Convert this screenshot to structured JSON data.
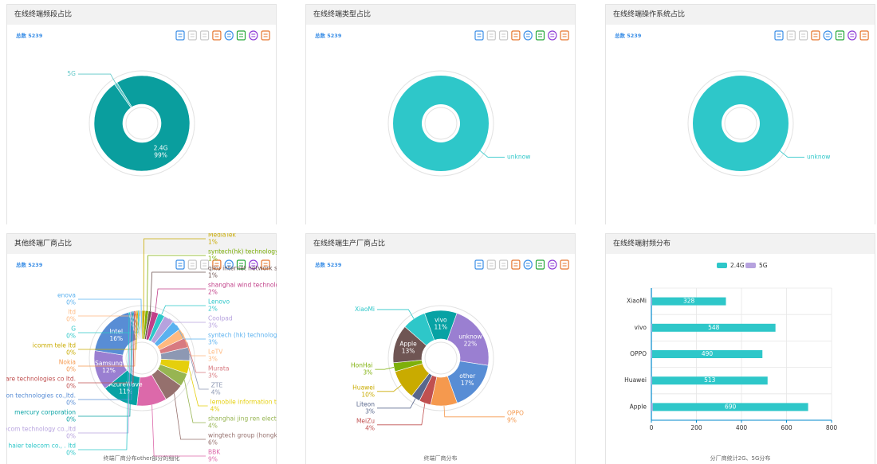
{
  "chart_data": [
    {
      "type": "pie",
      "title": "在线终端频段占比",
      "subtitle": "总数 5239",
      "categories": [
        "5G",
        "2.4G"
      ],
      "values": [
        1,
        99
      ],
      "value_labels": [
        null,
        "99%"
      ],
      "colors": [
        "#5bc6c6",
        "#0a9e9e"
      ]
    },
    {
      "type": "pie",
      "title": "在线终端类型占比",
      "subtitle": "总数 5239",
      "categories": [
        "unknow"
      ],
      "values": [
        100
      ],
      "colors": [
        "#2ec7c9"
      ]
    },
    {
      "type": "pie",
      "title": "在线终端操作系统占比",
      "subtitle": "总数 5239",
      "categories": [
        "unknow"
      ],
      "values": [
        100
      ],
      "colors": [
        "#2ec7c9"
      ]
    },
    {
      "type": "pie",
      "title": "其他终端厂商占比",
      "subtitle": "总数 5239",
      "caption": "终端厂商分布other部分的细化",
      "categories": [
        "MediaTek",
        "syntech(hk) technology limited",
        "qiku internet network scientific (shen",
        "shanghai wind technologies co.,l",
        "Lenovo",
        "Coolpad",
        "syntech (hk) technology",
        "LeTV",
        "Murata",
        "ZTE",
        "lemobile information techn",
        "shanghai jing ren electronic techn",
        "wingtech group (hongkong ) limite",
        "BBK",
        "AzureWave",
        "Samsung",
        "Intel",
        "qingdao haier telecom co., . ltd",
        "chang telecom technology co.,ltd",
        "mercury corporation",
        "unication technologies co.,ltd.",
        "oware technologies co ltd.",
        "Nokia",
        "icomm tele ltd",
        "G",
        "ltd",
        "enova"
      ],
      "values": [
        1,
        1,
        1,
        2,
        2,
        3,
        3,
        3,
        3,
        4,
        4,
        4,
        6,
        9,
        11,
        12,
        16,
        0.4,
        0.4,
        0.4,
        0.4,
        0.4,
        0.4,
        0.4,
        0.4,
        0.4,
        0.4
      ],
      "value_labels": [
        "1%",
        "1%",
        "1%",
        "2%",
        "2%",
        "3%",
        "3%",
        "3%",
        "3%",
        "4%",
        "4%",
        "4%",
        "6%",
        "9%",
        "11%",
        "12%",
        "16%",
        "0%",
        "0%",
        "0%",
        "0%",
        "0%",
        "0%",
        "0%",
        "0%",
        "0%",
        "0%"
      ],
      "colors": [
        "#c9ab00",
        "#7eb00a",
        "#6f5553",
        "#c14089",
        "#2ec7c9",
        "#b6a2de",
        "#5ab1ef",
        "#ffb980",
        "#d87a80",
        "#8d98b3",
        "#e5cf0d",
        "#97b552",
        "#95706d",
        "#dc69aa",
        "#07a2a4",
        "#9a7fd1",
        "#588dd5",
        "#2ec7c9",
        "#b6a2de",
        "#07a2a4",
        "#588dd5",
        "#c05050",
        "#f5994e",
        "#c9ab00",
        "#2ec7c9",
        "#ffb980",
        "#5ab1ef"
      ]
    },
    {
      "type": "pie",
      "title": "在线终端生产厂商占比",
      "subtitle": "总数 5239",
      "caption": "终端厂商分布",
      "categories": [
        "vivo",
        "unknow",
        "other",
        "OPPO",
        "MeiZu",
        "Liteon",
        "Huawei",
        "HonHai",
        "Apple",
        "XiaoMi"
      ],
      "values": [
        11,
        22,
        17,
        9,
        4,
        3,
        10,
        3,
        13,
        8
      ],
      "value_labels": [
        "11%",
        "22%",
        "17%",
        "9%",
        "4%",
        "3%",
        "10%",
        "3%",
        "13%",
        null
      ],
      "colors": [
        "#07a2a4",
        "#9a7fd1",
        "#588dd5",
        "#f5994e",
        "#c05050",
        "#59678c",
        "#c9ab00",
        "#7eb00a",
        "#6f5553",
        "#2ec7c9"
      ]
    },
    {
      "type": "hbar",
      "title": "在线终端射频分布",
      "caption": "分厂商统计2G、5G分布",
      "categories": [
        "XiaoMi",
        "vivo",
        "OPPO",
        "Huawei",
        "Apple"
      ],
      "series": [
        {
          "name": "2.4G",
          "color": "#2ec7c9",
          "values": [
            328,
            548,
            490,
            513,
            690
          ]
        },
        {
          "name": "5G",
          "color": "#b6a2de",
          "values": [
            3,
            3,
            3,
            3,
            6
          ]
        }
      ],
      "xlim": [
        0,
        800
      ],
      "xticks": [
        0,
        200,
        400,
        600,
        800
      ],
      "grid": true
    }
  ]
}
